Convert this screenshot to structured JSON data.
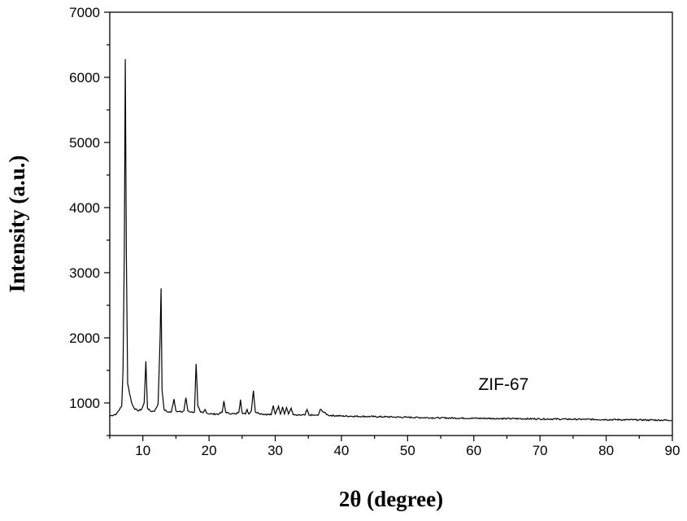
{
  "chart_data": {
    "type": "line",
    "title": "",
    "xlabel": "2θ (degree)",
    "ylabel": "Intensity (a.u.)",
    "xlim": [
      5,
      90
    ],
    "ylim": [
      500,
      7000
    ],
    "xticks": [
      10,
      20,
      30,
      40,
      50,
      60,
      70,
      80,
      90
    ],
    "xtick_labels": [
      "10",
      "20",
      "30",
      "40",
      "50",
      "60",
      "70",
      "80",
      "90"
    ],
    "yticks": [
      1000,
      2000,
      3000,
      4000,
      5000,
      6000,
      7000
    ],
    "ytick_labels": [
      "1000",
      "2000",
      "3000",
      "4000",
      "5000",
      "6000",
      "7000"
    ],
    "grid": false,
    "annotations": [
      {
        "text": "ZIF-67",
        "x": 64.5,
        "y": 1200
      }
    ],
    "series": [
      {
        "color": "#000000",
        "x": [
          5.0,
          6.0,
          6.8,
          7.0,
          7.2,
          7.35,
          7.5,
          7.7,
          7.9,
          8.1,
          8.3,
          8.7,
          9.2,
          9.8,
          10.2,
          10.45,
          10.7,
          11.2,
          11.8,
          12.3,
          12.6,
          12.75,
          12.9,
          13.2,
          13.8,
          14.3,
          14.7,
          15.0,
          15.8,
          16.2,
          16.5,
          16.8,
          17.3,
          17.8,
          18.05,
          18.3,
          18.7,
          19.1,
          19.4,
          19.7,
          20.5,
          21.5,
          22.0,
          22.25,
          22.5,
          23.0,
          24.0,
          24.5,
          24.75,
          25.0,
          25.5,
          25.75,
          26.0,
          26.4,
          26.7,
          27.0,
          28.0,
          29.4,
          29.7,
          30.0,
          30.5,
          30.8,
          31.1,
          31.4,
          31.7,
          32.0,
          32.4,
          32.7,
          33.2,
          34.5,
          34.8,
          35.1,
          36.0,
          36.5,
          36.8,
          38.0,
          40.0,
          45.0,
          50.0,
          55.0,
          60.0,
          65.0,
          70.0,
          75.0,
          80.0,
          85.0,
          90.0
        ],
        "y": [
          800,
          830,
          950,
          1500,
          3300,
          6280,
          3300,
          1300,
          1200,
          1100,
          1000,
          920,
          880,
          900,
          1000,
          1640,
          920,
          870,
          880,
          980,
          2000,
          2760,
          1200,
          900,
          860,
          860,
          1060,
          880,
          860,
          880,
          1080,
          880,
          860,
          860,
          1600,
          950,
          860,
          850,
          900,
          840,
          830,
          830,
          860,
          1030,
          860,
          840,
          830,
          860,
          1050,
          850,
          830,
          900,
          830,
          880,
          1190,
          860,
          830,
          820,
          960,
          830,
          950,
          830,
          940,
          830,
          930,
          830,
          920,
          820,
          810,
          815,
          900,
          815,
          810,
          810,
          900,
          810,
          800,
          790,
          780,
          770,
          765,
          760,
          755,
          750,
          745,
          740,
          735
        ]
      }
    ]
  }
}
